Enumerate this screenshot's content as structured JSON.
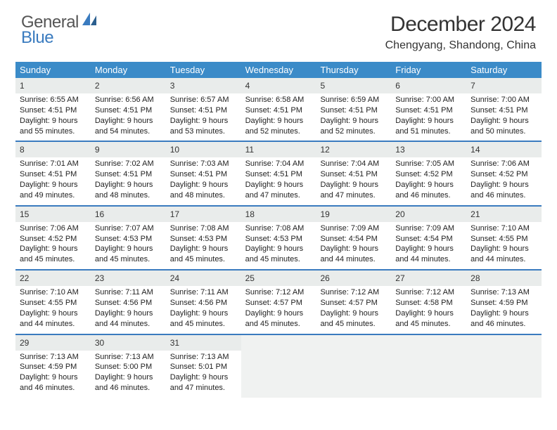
{
  "logo": {
    "text1": "General",
    "text2": "Blue"
  },
  "title": "December 2024",
  "location": "Chengyang, Shandong, China",
  "colors": {
    "header_bg": "#3b8bc8",
    "header_fg": "#ffffff",
    "border": "#3a7bbf",
    "daynum_bg": "#e9eceb",
    "empty_bg": "#f0f2f1",
    "text": "#222222",
    "logo_gray": "#555555",
    "logo_blue": "#3a7bbf"
  },
  "type": "calendar",
  "day_headers": [
    "Sunday",
    "Monday",
    "Tuesday",
    "Wednesday",
    "Thursday",
    "Friday",
    "Saturday"
  ],
  "days": [
    {
      "n": "1",
      "sr": "Sunrise: 6:55 AM",
      "ss": "Sunset: 4:51 PM",
      "d1": "Daylight: 9 hours",
      "d2": "and 55 minutes."
    },
    {
      "n": "2",
      "sr": "Sunrise: 6:56 AM",
      "ss": "Sunset: 4:51 PM",
      "d1": "Daylight: 9 hours",
      "d2": "and 54 minutes."
    },
    {
      "n": "3",
      "sr": "Sunrise: 6:57 AM",
      "ss": "Sunset: 4:51 PM",
      "d1": "Daylight: 9 hours",
      "d2": "and 53 minutes."
    },
    {
      "n": "4",
      "sr": "Sunrise: 6:58 AM",
      "ss": "Sunset: 4:51 PM",
      "d1": "Daylight: 9 hours",
      "d2": "and 52 minutes."
    },
    {
      "n": "5",
      "sr": "Sunrise: 6:59 AM",
      "ss": "Sunset: 4:51 PM",
      "d1": "Daylight: 9 hours",
      "d2": "and 52 minutes."
    },
    {
      "n": "6",
      "sr": "Sunrise: 7:00 AM",
      "ss": "Sunset: 4:51 PM",
      "d1": "Daylight: 9 hours",
      "d2": "and 51 minutes."
    },
    {
      "n": "7",
      "sr": "Sunrise: 7:00 AM",
      "ss": "Sunset: 4:51 PM",
      "d1": "Daylight: 9 hours",
      "d2": "and 50 minutes."
    },
    {
      "n": "8",
      "sr": "Sunrise: 7:01 AM",
      "ss": "Sunset: 4:51 PM",
      "d1": "Daylight: 9 hours",
      "d2": "and 49 minutes."
    },
    {
      "n": "9",
      "sr": "Sunrise: 7:02 AM",
      "ss": "Sunset: 4:51 PM",
      "d1": "Daylight: 9 hours",
      "d2": "and 48 minutes."
    },
    {
      "n": "10",
      "sr": "Sunrise: 7:03 AM",
      "ss": "Sunset: 4:51 PM",
      "d1": "Daylight: 9 hours",
      "d2": "and 48 minutes."
    },
    {
      "n": "11",
      "sr": "Sunrise: 7:04 AM",
      "ss": "Sunset: 4:51 PM",
      "d1": "Daylight: 9 hours",
      "d2": "and 47 minutes."
    },
    {
      "n": "12",
      "sr": "Sunrise: 7:04 AM",
      "ss": "Sunset: 4:51 PM",
      "d1": "Daylight: 9 hours",
      "d2": "and 47 minutes."
    },
    {
      "n": "13",
      "sr": "Sunrise: 7:05 AM",
      "ss": "Sunset: 4:52 PM",
      "d1": "Daylight: 9 hours",
      "d2": "and 46 minutes."
    },
    {
      "n": "14",
      "sr": "Sunrise: 7:06 AM",
      "ss": "Sunset: 4:52 PM",
      "d1": "Daylight: 9 hours",
      "d2": "and 46 minutes."
    },
    {
      "n": "15",
      "sr": "Sunrise: 7:06 AM",
      "ss": "Sunset: 4:52 PM",
      "d1": "Daylight: 9 hours",
      "d2": "and 45 minutes."
    },
    {
      "n": "16",
      "sr": "Sunrise: 7:07 AM",
      "ss": "Sunset: 4:53 PM",
      "d1": "Daylight: 9 hours",
      "d2": "and 45 minutes."
    },
    {
      "n": "17",
      "sr": "Sunrise: 7:08 AM",
      "ss": "Sunset: 4:53 PM",
      "d1": "Daylight: 9 hours",
      "d2": "and 45 minutes."
    },
    {
      "n": "18",
      "sr": "Sunrise: 7:08 AM",
      "ss": "Sunset: 4:53 PM",
      "d1": "Daylight: 9 hours",
      "d2": "and 45 minutes."
    },
    {
      "n": "19",
      "sr": "Sunrise: 7:09 AM",
      "ss": "Sunset: 4:54 PM",
      "d1": "Daylight: 9 hours",
      "d2": "and 44 minutes."
    },
    {
      "n": "20",
      "sr": "Sunrise: 7:09 AM",
      "ss": "Sunset: 4:54 PM",
      "d1": "Daylight: 9 hours",
      "d2": "and 44 minutes."
    },
    {
      "n": "21",
      "sr": "Sunrise: 7:10 AM",
      "ss": "Sunset: 4:55 PM",
      "d1": "Daylight: 9 hours",
      "d2": "and 44 minutes."
    },
    {
      "n": "22",
      "sr": "Sunrise: 7:10 AM",
      "ss": "Sunset: 4:55 PM",
      "d1": "Daylight: 9 hours",
      "d2": "and 44 minutes."
    },
    {
      "n": "23",
      "sr": "Sunrise: 7:11 AM",
      "ss": "Sunset: 4:56 PM",
      "d1": "Daylight: 9 hours",
      "d2": "and 44 minutes."
    },
    {
      "n": "24",
      "sr": "Sunrise: 7:11 AM",
      "ss": "Sunset: 4:56 PM",
      "d1": "Daylight: 9 hours",
      "d2": "and 45 minutes."
    },
    {
      "n": "25",
      "sr": "Sunrise: 7:12 AM",
      "ss": "Sunset: 4:57 PM",
      "d1": "Daylight: 9 hours",
      "d2": "and 45 minutes."
    },
    {
      "n": "26",
      "sr": "Sunrise: 7:12 AM",
      "ss": "Sunset: 4:57 PM",
      "d1": "Daylight: 9 hours",
      "d2": "and 45 minutes."
    },
    {
      "n": "27",
      "sr": "Sunrise: 7:12 AM",
      "ss": "Sunset: 4:58 PM",
      "d1": "Daylight: 9 hours",
      "d2": "and 45 minutes."
    },
    {
      "n": "28",
      "sr": "Sunrise: 7:13 AM",
      "ss": "Sunset: 4:59 PM",
      "d1": "Daylight: 9 hours",
      "d2": "and 46 minutes."
    },
    {
      "n": "29",
      "sr": "Sunrise: 7:13 AM",
      "ss": "Sunset: 4:59 PM",
      "d1": "Daylight: 9 hours",
      "d2": "and 46 minutes."
    },
    {
      "n": "30",
      "sr": "Sunrise: 7:13 AM",
      "ss": "Sunset: 5:00 PM",
      "d1": "Daylight: 9 hours",
      "d2": "and 46 minutes."
    },
    {
      "n": "31",
      "sr": "Sunrise: 7:13 AM",
      "ss": "Sunset: 5:01 PM",
      "d1": "Daylight: 9 hours",
      "d2": "and 47 minutes."
    }
  ]
}
